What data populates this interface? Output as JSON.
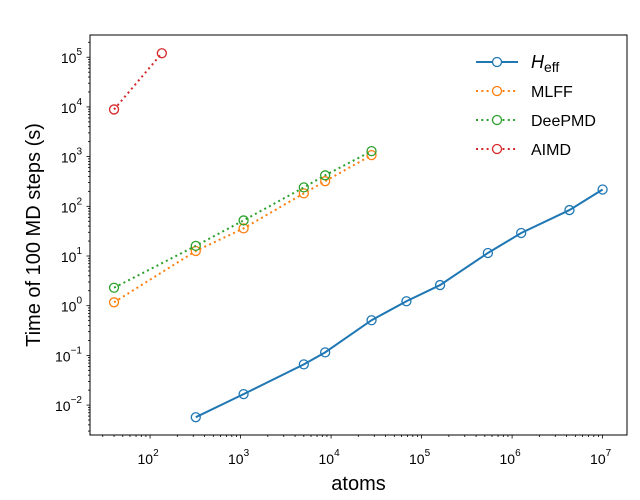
{
  "chart_data": {
    "type": "line",
    "title": "",
    "xlabel": "atoms",
    "ylabel": "Time of 100 MD steps (s)",
    "xscale": "log",
    "yscale": "log",
    "xlim": [
      21.7,
      18600000
    ],
    "ylim": [
      0.0025,
      280000
    ],
    "grid": false,
    "legend_position": "top-right",
    "x_ticks": [
      {
        "value": 100,
        "base": "10",
        "exp": "2"
      },
      {
        "value": 1000,
        "base": "10",
        "exp": "3"
      },
      {
        "value": 10000,
        "base": "10",
        "exp": "4"
      },
      {
        "value": 100000,
        "base": "10",
        "exp": "5"
      },
      {
        "value": 1000000,
        "base": "10",
        "exp": "6"
      },
      {
        "value": 10000000,
        "base": "10",
        "exp": "7"
      }
    ],
    "y_ticks": [
      {
        "value": 0.01,
        "base": "10",
        "exp": "−2"
      },
      {
        "value": 0.1,
        "base": "10",
        "exp": "−1"
      },
      {
        "value": 1,
        "base": "10",
        "exp": "0"
      },
      {
        "value": 10,
        "base": "10",
        "exp": "1"
      },
      {
        "value": 100,
        "base": "10",
        "exp": "2"
      },
      {
        "value": 1000,
        "base": "10",
        "exp": "3"
      },
      {
        "value": 10000,
        "base": "10",
        "exp": "4"
      },
      {
        "value": 100000,
        "base": "10",
        "exp": "5"
      }
    ],
    "series": [
      {
        "name": "H_eff",
        "legend_main": "H",
        "legend_sub": "eff",
        "color": "#1f77b4",
        "linestyle": "solid",
        "x": [
          320,
          1080,
          5000,
          8600,
          28000,
          68000,
          160000,
          540000,
          1260000,
          4300000,
          10000000
        ],
        "y": [
          0.0057,
          0.0166,
          0.066,
          0.115,
          0.51,
          1.23,
          2.6,
          11.5,
          29,
          84,
          218
        ]
      },
      {
        "name": "MLFF",
        "legend_main": "MLFF",
        "legend_sub": "",
        "color": "#ff7f0e",
        "linestyle": "dotted",
        "x": [
          40,
          320,
          1080,
          5000,
          8600,
          28000
        ],
        "y": [
          1.17,
          12.6,
          36,
          182,
          320,
          1070
        ]
      },
      {
        "name": "DeePMD",
        "legend_main": "DeePMD",
        "legend_sub": "",
        "color": "#2ca02c",
        "linestyle": "dotted",
        "x": [
          40,
          320,
          1080,
          5000,
          8600,
          28000
        ],
        "y": [
          2.3,
          16,
          52,
          240,
          420,
          1290
        ]
      },
      {
        "name": "AIMD",
        "legend_main": "AIMD",
        "legend_sub": "",
        "color": "#d62728",
        "linestyle": "dotted",
        "x": [
          40,
          135
        ],
        "y": [
          8900,
          120000
        ]
      }
    ]
  }
}
